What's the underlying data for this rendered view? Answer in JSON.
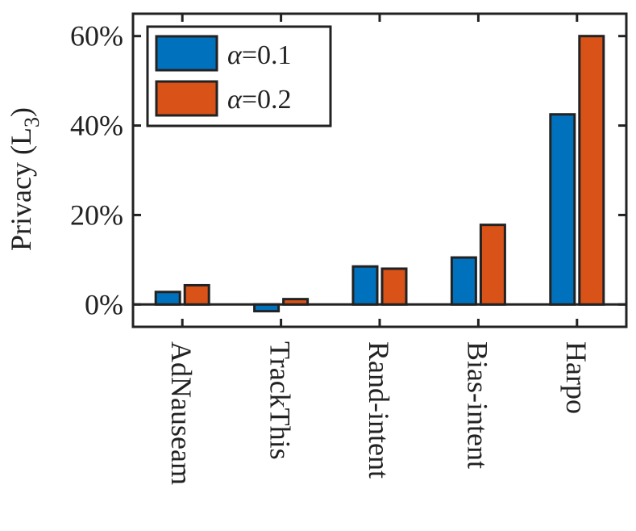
{
  "chart_data": {
    "type": "bar",
    "title": "",
    "xlabel": "",
    "ylabel": "Privacy (L",
    "ylabel_subscript": "3",
    "ylabel_suffix": ")",
    "categories": [
      "AdNauseam",
      "TrackThis",
      "Rand-intent",
      "Bias-intent",
      "Harpo"
    ],
    "series": [
      {
        "name": "α=0.1",
        "color": "#0072BD",
        "values": [
          2.8,
          -1.5,
          8.5,
          10.5,
          42.5
        ]
      },
      {
        "name": "α=0.2",
        "color": "#D95319",
        "values": [
          4.3,
          1.2,
          8.0,
          17.8,
          60.0
        ]
      }
    ],
    "ylim": [
      -5,
      65
    ],
    "yticks": [
      0,
      20,
      40,
      60
    ],
    "ytick_labels": [
      "0%",
      "20%",
      "40%",
      "60%"
    ],
    "legend_placement": "top-left",
    "legend": {
      "entries": [
        {
          "symbol": "α",
          "text": "=0.1"
        },
        {
          "symbol": "α",
          "text": "=0.2"
        }
      ]
    },
    "grid": false
  }
}
